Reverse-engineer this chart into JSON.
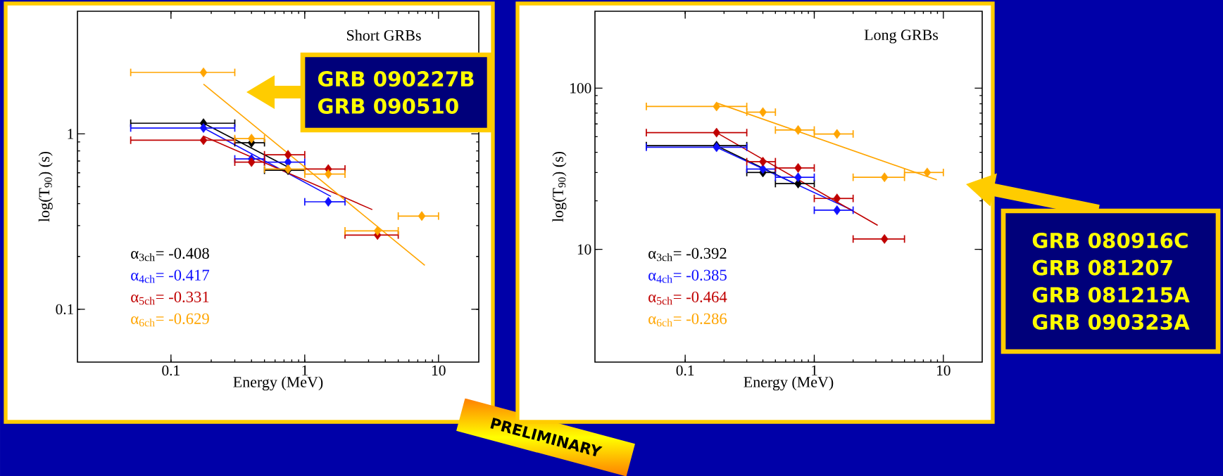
{
  "chart_data": [
    {
      "type": "scatter",
      "title": "Short GRBs",
      "xlabel": "Energy (MeV)",
      "ylabel": "log(T$_{90}$) (s)",
      "log": "xy",
      "xlim": [
        0.02,
        20
      ],
      "ylim": [
        0.05,
        5
      ],
      "xticks": [
        0.1,
        1,
        10
      ],
      "yticks": [
        0.1,
        1
      ],
      "annotations": [
        "GRB 090227B",
        "GRB 090510",
        "PRELIMINARY"
      ],
      "series": [
        {
          "color": "#000000",
          "marker": "diamond",
          "x": [
            0.175,
            0.4,
            0.75
          ],
          "values": [
            1.15,
            0.89,
            0.62
          ],
          "xerrors": [
            [
              0.05,
              0.3
            ],
            [
              0.3,
              0.5
            ],
            [
              0.5,
              1
            ]
          ]
        },
        {
          "color": "#1010ff",
          "marker": "diamond",
          "x": [
            0.175,
            0.4,
            0.75,
            1.5
          ],
          "values": [
            1.08,
            0.72,
            0.69,
            0.41
          ],
          "xerrors": [
            [
              0.05,
              0.3
            ],
            [
              0.3,
              0.5
            ],
            [
              0.5,
              1
            ],
            [
              1,
              2
            ]
          ]
        },
        {
          "color": "#c00000",
          "marker": "diamond",
          "x": [
            0.175,
            0.4,
            0.75,
            1.5,
            3.5
          ],
          "values": [
            0.92,
            0.69,
            0.76,
            0.63,
            0.265
          ],
          "xerrors": [
            [
              0.05,
              0.3
            ],
            [
              0.3,
              0.5
            ],
            [
              0.5,
              1
            ],
            [
              1,
              2
            ],
            [
              2,
              5
            ]
          ]
        },
        {
          "color": "#ffa500",
          "marker": "diamond",
          "x": [
            0.175,
            0.4,
            0.75,
            1.5,
            3.5,
            7.5
          ],
          "values": [
            2.24,
            0.94,
            0.63,
            0.59,
            0.28,
            0.34
          ],
          "xerrors": [
            [
              0.05,
              0.3
            ],
            [
              0.3,
              0.5
            ],
            [
              0.5,
              1
            ],
            [
              1,
              2
            ],
            [
              2,
              5
            ],
            [
              5,
              10
            ]
          ]
        },
        {
          "type": "line",
          "name": "α$_{3ch}$=  -0.408",
          "color": "#000000",
          "x": [
            0.175,
            0.77
          ],
          "values": [
            1.15,
            0.64
          ]
        },
        {
          "type": "line",
          "name": "α$_{4ch}$=  -0.417",
          "color": "#1010ff",
          "x": [
            0.175,
            1.57
          ],
          "values": [
            1.08,
            0.44
          ]
        },
        {
          "type": "line",
          "name": "α$_{5ch}$=  -0.331",
          "color": "#c00000",
          "x": [
            0.175,
            3.2
          ],
          "values": [
            0.97,
            0.37
          ]
        },
        {
          "type": "line",
          "name": "α$_{6ch}$=  -0.629",
          "color": "#ffa500",
          "x": [
            0.175,
            7.9
          ],
          "values": [
            1.92,
            0.178
          ]
        }
      ]
    },
    {
      "type": "scatter",
      "title": "Long GRBs",
      "xlabel": "Energy (MeV)",
      "ylabel": "log(T$_{90}$) (s)",
      "log": "xy",
      "xlim": [
        0.02,
        20
      ],
      "ylim": [
        2,
        300
      ],
      "xticks": [
        0.1,
        1,
        10
      ],
      "yticks": [
        10,
        100
      ],
      "annotations": [
        "GRB 080916C",
        "GRB 081207",
        "GRB 081215A",
        "GRB 090323A"
      ],
      "series": [
        {
          "color": "#000000",
          "marker": "diamond",
          "x": [
            0.175,
            0.4,
            0.75
          ],
          "values": [
            44,
            30,
            25.6
          ],
          "xerrors": [
            [
              0.05,
              0.3
            ],
            [
              0.3,
              0.5
            ],
            [
              0.5,
              1
            ]
          ]
        },
        {
          "color": "#1010ff",
          "marker": "diamond",
          "x": [
            0.175,
            0.4,
            0.75,
            1.5
          ],
          "values": [
            43,
            31.5,
            28,
            17.5
          ],
          "xerrors": [
            [
              0.05,
              0.3
            ],
            [
              0.3,
              0.5
            ],
            [
              0.5,
              1
            ],
            [
              1,
              2
            ]
          ]
        },
        {
          "color": "#c00000",
          "marker": "diamond",
          "x": [
            0.175,
            0.4,
            0.75,
            1.5,
            3.5
          ],
          "values": [
            53,
            35,
            32,
            20.7,
            11.6
          ],
          "xerrors": [
            [
              0.05,
              0.3
            ],
            [
              0.3,
              0.5
            ],
            [
              0.5,
              1
            ],
            [
              1,
              2
            ],
            [
              2,
              5
            ]
          ]
        },
        {
          "color": "#ffa500",
          "marker": "diamond",
          "x": [
            0.175,
            0.4,
            0.75,
            1.5,
            3.5,
            7.5
          ],
          "values": [
            77,
            71,
            55,
            52,
            28,
            30
          ],
          "xerrors": [
            [
              0.05,
              0.3
            ],
            [
              0.3,
              0.5
            ],
            [
              0.5,
              1
            ],
            [
              1,
              2
            ],
            [
              2,
              5
            ],
            [
              5,
              10
            ]
          ]
        },
        {
          "type": "line",
          "name": "α$_{3ch}$=  -0.392",
          "color": "#000000",
          "x": [
            0.175,
            0.75
          ],
          "values": [
            44,
            25
          ]
        },
        {
          "type": "line",
          "name": "α$_{4ch}$=  -0.385",
          "color": "#1010ff",
          "x": [
            0.175,
            2.0
          ],
          "values": [
            43,
            17.4
          ]
        },
        {
          "type": "line",
          "name": "α$_{5ch}$=  -0.464",
          "color": "#c00000",
          "x": [
            0.175,
            3.1
          ],
          "values": [
            53,
            14.1
          ]
        },
        {
          "type": "line",
          "name": "α$_{6ch}$=  -0.286",
          "color": "#ffa500",
          "x": [
            0.175,
            8.9
          ],
          "values": [
            81,
            27
          ]
        }
      ]
    }
  ]
}
